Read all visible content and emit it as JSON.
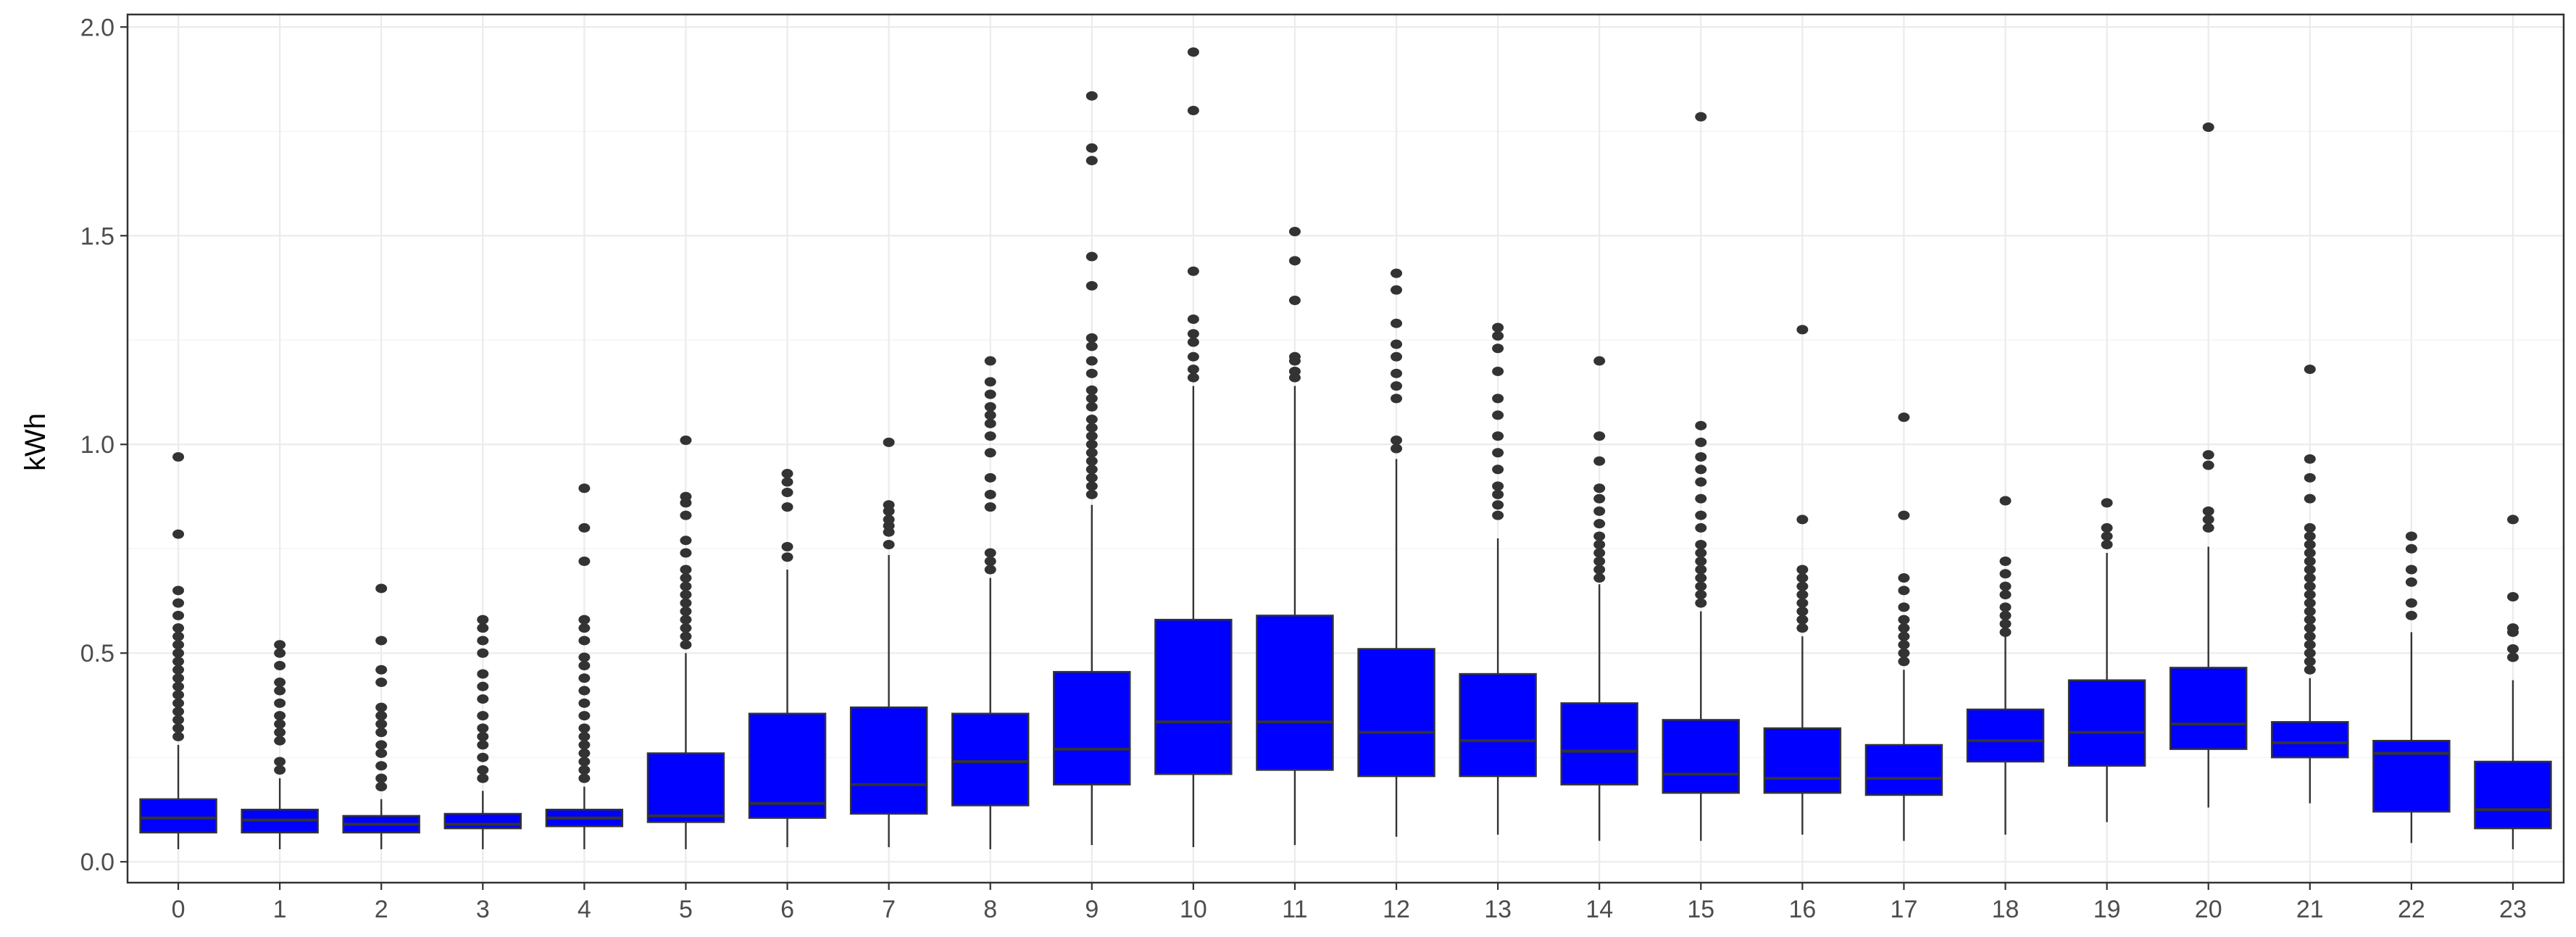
{
  "chart_data": {
    "type": "box",
    "ylabel": "kWh",
    "xlabel": "",
    "ylim": [
      -0.05,
      2.03
    ],
    "y_ticks": [
      "0.0",
      "0.5",
      "1.0",
      "1.5",
      "2.0"
    ],
    "grid": true,
    "box_color": "#0000ff",
    "categories": [
      "0",
      "1",
      "2",
      "3",
      "4",
      "5",
      "6",
      "7",
      "8",
      "9",
      "10",
      "11",
      "12",
      "13",
      "14",
      "15",
      "16",
      "17",
      "18",
      "19",
      "20",
      "21",
      "22",
      "23"
    ],
    "boxes": [
      {
        "q1": 0.07,
        "median": 0.105,
        "q3": 0.15,
        "whisker_low": 0.03,
        "whisker_high": 0.28,
        "outliers": [
          0.3,
          0.32,
          0.34,
          0.36,
          0.38,
          0.4,
          0.42,
          0.44,
          0.46,
          0.48,
          0.5,
          0.52,
          0.54,
          0.56,
          0.59,
          0.62,
          0.65,
          0.785,
          0.97
        ]
      },
      {
        "q1": 0.07,
        "median": 0.1,
        "q3": 0.125,
        "whisker_low": 0.03,
        "whisker_high": 0.2,
        "outliers": [
          0.22,
          0.24,
          0.29,
          0.31,
          0.33,
          0.35,
          0.38,
          0.41,
          0.43,
          0.47,
          0.5,
          0.52
        ]
      },
      {
        "q1": 0.07,
        "median": 0.09,
        "q3": 0.11,
        "whisker_low": 0.03,
        "whisker_high": 0.15,
        "outliers": [
          0.18,
          0.2,
          0.23,
          0.26,
          0.28,
          0.31,
          0.33,
          0.35,
          0.37,
          0.43,
          0.46,
          0.53,
          0.655
        ]
      },
      {
        "q1": 0.08,
        "median": 0.09,
        "q3": 0.115,
        "whisker_low": 0.03,
        "whisker_high": 0.17,
        "outliers": [
          0.2,
          0.22,
          0.25,
          0.28,
          0.3,
          0.32,
          0.35,
          0.39,
          0.42,
          0.45,
          0.5,
          0.53,
          0.56,
          0.58
        ]
      },
      {
        "q1": 0.085,
        "median": 0.105,
        "q3": 0.125,
        "whisker_low": 0.03,
        "whisker_high": 0.18,
        "outliers": [
          0.2,
          0.22,
          0.24,
          0.26,
          0.28,
          0.3,
          0.32,
          0.35,
          0.38,
          0.41,
          0.44,
          0.47,
          0.49,
          0.53,
          0.56,
          0.58,
          0.72,
          0.8,
          0.895
        ]
      },
      {
        "q1": 0.095,
        "median": 0.11,
        "q3": 0.26,
        "whisker_low": 0.03,
        "whisker_high": 0.5,
        "outliers": [
          0.52,
          0.54,
          0.56,
          0.58,
          0.6,
          0.62,
          0.64,
          0.66,
          0.68,
          0.7,
          0.74,
          0.77,
          0.83,
          0.86,
          0.875,
          1.01
        ]
      },
      {
        "q1": 0.105,
        "median": 0.14,
        "q3": 0.355,
        "whisker_low": 0.035,
        "whisker_high": 0.7,
        "outliers": [
          0.73,
          0.755,
          0.85,
          0.885,
          0.91,
          0.93
        ]
      },
      {
        "q1": 0.115,
        "median": 0.185,
        "q3": 0.37,
        "whisker_low": 0.035,
        "whisker_high": 0.735,
        "outliers": [
          0.76,
          0.79,
          0.805,
          0.82,
          0.84,
          0.855,
          1.005
        ]
      },
      {
        "q1": 0.135,
        "median": 0.24,
        "q3": 0.355,
        "whisker_low": 0.03,
        "whisker_high": 0.68,
        "outliers": [
          0.7,
          0.72,
          0.74,
          0.85,
          0.88,
          0.92,
          0.98,
          1.02,
          1.05,
          1.07,
          1.09,
          1.12,
          1.15,
          1.2
        ]
      },
      {
        "q1": 0.185,
        "median": 0.27,
        "q3": 0.455,
        "whisker_low": 0.04,
        "whisker_high": 0.855,
        "outliers": [
          0.88,
          0.9,
          0.92,
          0.94,
          0.96,
          0.98,
          1.0,
          1.02,
          1.04,
          1.06,
          1.09,
          1.11,
          1.13,
          1.17,
          1.2,
          1.235,
          1.255,
          1.38,
          1.45,
          1.68,
          1.71,
          1.835
        ]
      },
      {
        "q1": 0.21,
        "median": 0.335,
        "q3": 0.58,
        "whisker_low": 0.035,
        "whisker_high": 1.14,
        "outliers": [
          1.16,
          1.18,
          1.21,
          1.245,
          1.265,
          1.3,
          1.415,
          1.8,
          1.94
        ]
      },
      {
        "q1": 0.22,
        "median": 0.335,
        "q3": 0.59,
        "whisker_low": 0.04,
        "whisker_high": 1.14,
        "outliers": [
          1.16,
          1.175,
          1.2,
          1.21,
          1.345,
          1.44,
          1.51
        ]
      },
      {
        "q1": 0.205,
        "median": 0.31,
        "q3": 0.51,
        "whisker_low": 0.06,
        "whisker_high": 0.965,
        "outliers": [
          0.99,
          1.01,
          1.11,
          1.14,
          1.17,
          1.21,
          1.24,
          1.29,
          1.37,
          1.41
        ]
      },
      {
        "q1": 0.205,
        "median": 0.29,
        "q3": 0.45,
        "whisker_low": 0.065,
        "whisker_high": 0.775,
        "outliers": [
          0.83,
          0.855,
          0.88,
          0.9,
          0.94,
          0.98,
          1.02,
          1.07,
          1.11,
          1.175,
          1.23,
          1.26,
          1.28
        ]
      },
      {
        "q1": 0.185,
        "median": 0.265,
        "q3": 0.38,
        "whisker_low": 0.05,
        "whisker_high": 0.665,
        "outliers": [
          0.68,
          0.7,
          0.72,
          0.74,
          0.76,
          0.78,
          0.81,
          0.84,
          0.87,
          0.895,
          0.96,
          1.02,
          1.2
        ]
      },
      {
        "q1": 0.165,
        "median": 0.21,
        "q3": 0.34,
        "whisker_low": 0.05,
        "whisker_high": 0.6,
        "outliers": [
          0.62,
          0.64,
          0.66,
          0.68,
          0.7,
          0.72,
          0.74,
          0.76,
          0.8,
          0.83,
          0.87,
          0.91,
          0.94,
          0.97,
          1.005,
          1.045,
          1.785
        ]
      },
      {
        "q1": 0.165,
        "median": 0.2,
        "q3": 0.32,
        "whisker_low": 0.065,
        "whisker_high": 0.54,
        "outliers": [
          0.56,
          0.58,
          0.6,
          0.62,
          0.64,
          0.66,
          0.68,
          0.7,
          0.82,
          1.275
        ]
      },
      {
        "q1": 0.16,
        "median": 0.2,
        "q3": 0.28,
        "whisker_low": 0.05,
        "whisker_high": 0.46,
        "outliers": [
          0.48,
          0.5,
          0.52,
          0.54,
          0.56,
          0.58,
          0.61,
          0.65,
          0.68,
          0.83,
          1.065
        ]
      },
      {
        "q1": 0.24,
        "median": 0.29,
        "q3": 0.365,
        "whisker_low": 0.065,
        "whisker_high": 0.54,
        "outliers": [
          0.55,
          0.57,
          0.59,
          0.61,
          0.64,
          0.66,
          0.69,
          0.72,
          0.865
        ]
      },
      {
        "q1": 0.23,
        "median": 0.31,
        "q3": 0.435,
        "whisker_low": 0.095,
        "whisker_high": 0.74,
        "outliers": [
          0.76,
          0.78,
          0.8,
          0.86
        ]
      },
      {
        "q1": 0.27,
        "median": 0.33,
        "q3": 0.465,
        "whisker_low": 0.13,
        "whisker_high": 0.755,
        "outliers": [
          0.8,
          0.82,
          0.84,
          0.95,
          0.975,
          1.76
        ]
      },
      {
        "q1": 0.25,
        "median": 0.285,
        "q3": 0.335,
        "whisker_low": 0.14,
        "whisker_high": 0.44,
        "outliers": [
          0.46,
          0.48,
          0.5,
          0.52,
          0.54,
          0.56,
          0.58,
          0.6,
          0.62,
          0.64,
          0.66,
          0.68,
          0.7,
          0.72,
          0.74,
          0.76,
          0.78,
          0.8,
          0.87,
          0.92,
          0.965,
          1.18
        ]
      },
      {
        "q1": 0.12,
        "median": 0.26,
        "q3": 0.29,
        "whisker_low": 0.045,
        "whisker_high": 0.55,
        "outliers": [
          0.59,
          0.62,
          0.67,
          0.7,
          0.75,
          0.78
        ]
      },
      {
        "q1": 0.08,
        "median": 0.125,
        "q3": 0.24,
        "whisker_low": 0.03,
        "whisker_high": 0.435,
        "outliers": [
          0.49,
          0.51,
          0.55,
          0.56,
          0.635,
          0.82
        ]
      }
    ]
  }
}
